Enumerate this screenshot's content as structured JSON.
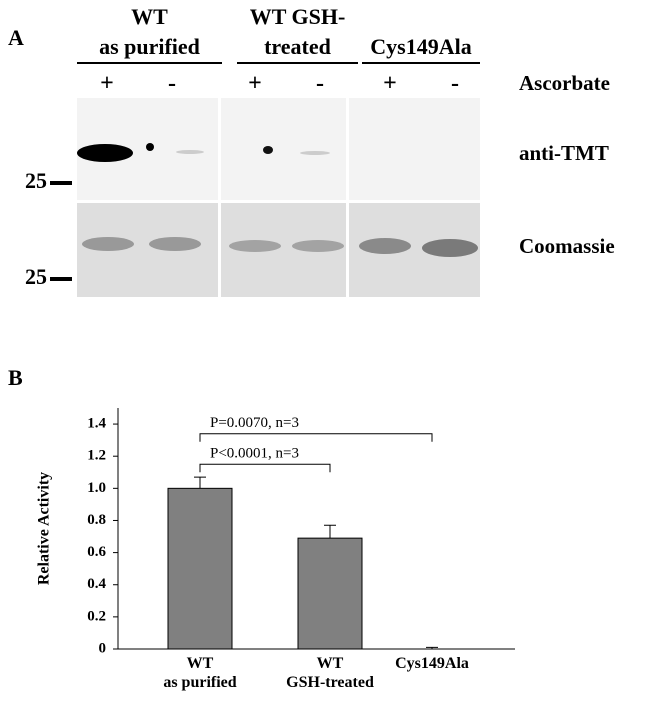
{
  "panel_a": {
    "label": "A",
    "groups": [
      "WT\nas purified",
      "WT GSH-\ntreated",
      "Cys149Ala"
    ],
    "signs": [
      "+",
      "-",
      "+",
      "-",
      "+",
      "-"
    ],
    "row_labels": [
      "Ascorbate",
      "anti-TMT",
      "Coomassie"
    ],
    "markers": [
      "25",
      "25"
    ]
  },
  "chart_data": {
    "type": "bar",
    "panel_label": "B",
    "y_label": "Relative Activity",
    "categories": [
      "WT\nas purified",
      "WT\nGSH-treated",
      "Cys149Ala"
    ],
    "values": [
      1.0,
      0.69,
      0
    ],
    "errors": [
      0.07,
      0.08,
      0.01
    ],
    "color": "#808080",
    "ylim": [
      0,
      1.5
    ],
    "yticks": [
      0,
      0.2,
      0.4,
      0.6,
      0.8,
      {
        "value": 1,
        "label": "1.0"
      },
      1.2,
      1.4
    ],
    "annotations": [
      {
        "text": "P=0.0070, n=3",
        "from": 0,
        "to": 2,
        "y": 1.34
      },
      {
        "text": "P<0.0001, n=3",
        "from": 0,
        "to": 1,
        "y": 1.15
      }
    ]
  }
}
